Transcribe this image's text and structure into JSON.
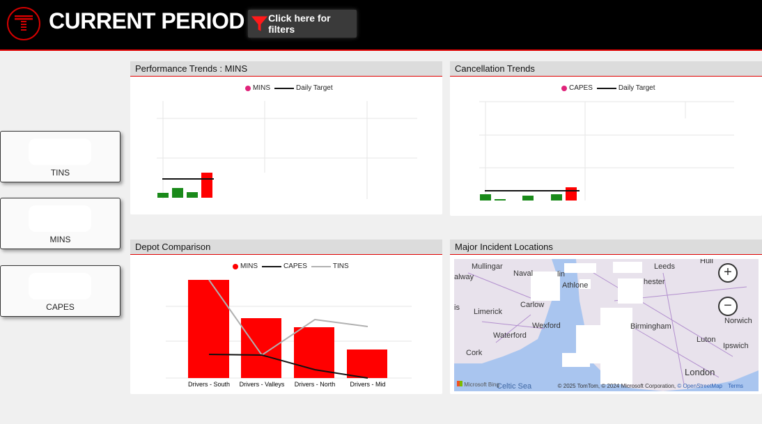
{
  "header": {
    "title": "CURRENT PERIOD",
    "filter_button_label": "Click here for filters"
  },
  "kpis": [
    {
      "label": "TINS"
    },
    {
      "label": "MINS"
    },
    {
      "label": "CAPES"
    }
  ],
  "panels": {
    "performance": {
      "title": "Performance Trends : MINS",
      "legend": {
        "series": "MINS",
        "target": "Daily Target"
      }
    },
    "cancellation": {
      "title": "Cancellation Trends",
      "legend": {
        "series": "CAPES",
        "target": "Daily Target"
      }
    },
    "depot": {
      "title": "Depot Comparison",
      "legend": {
        "a": "MINS",
        "b": "CAPES",
        "c": "TINS"
      },
      "categories": [
        "Drivers - South",
        "Drivers - Valleys",
        "Drivers - North",
        "Drivers - Mid"
      ]
    },
    "map": {
      "title": "Major Incident Locations",
      "zoom_in": "+",
      "zoom_out": "−",
      "bing": "Microsoft Bing",
      "attribution": "© 2025 TomTom, © 2024 Microsoft Corporation,",
      "osm": "© OpenStreetMap",
      "terms": "Terms",
      "places": [
        "Mullingar",
        "Hull",
        "Leeds",
        "alway",
        "Naval",
        "Athlone",
        "hester",
        "Limerick",
        "Carlow",
        "Wexford",
        "Birmingham",
        "Norwich",
        "Waterford",
        "Luton",
        "Ipswich",
        "Cork",
        "London",
        "Celtic Sea",
        "lin",
        "is"
      ]
    }
  },
  "colors": {
    "accent": "#e00000",
    "bar_green": "#1a8a1a",
    "bar_red": "#ff0000",
    "series_pink": "#e0237a"
  }
}
